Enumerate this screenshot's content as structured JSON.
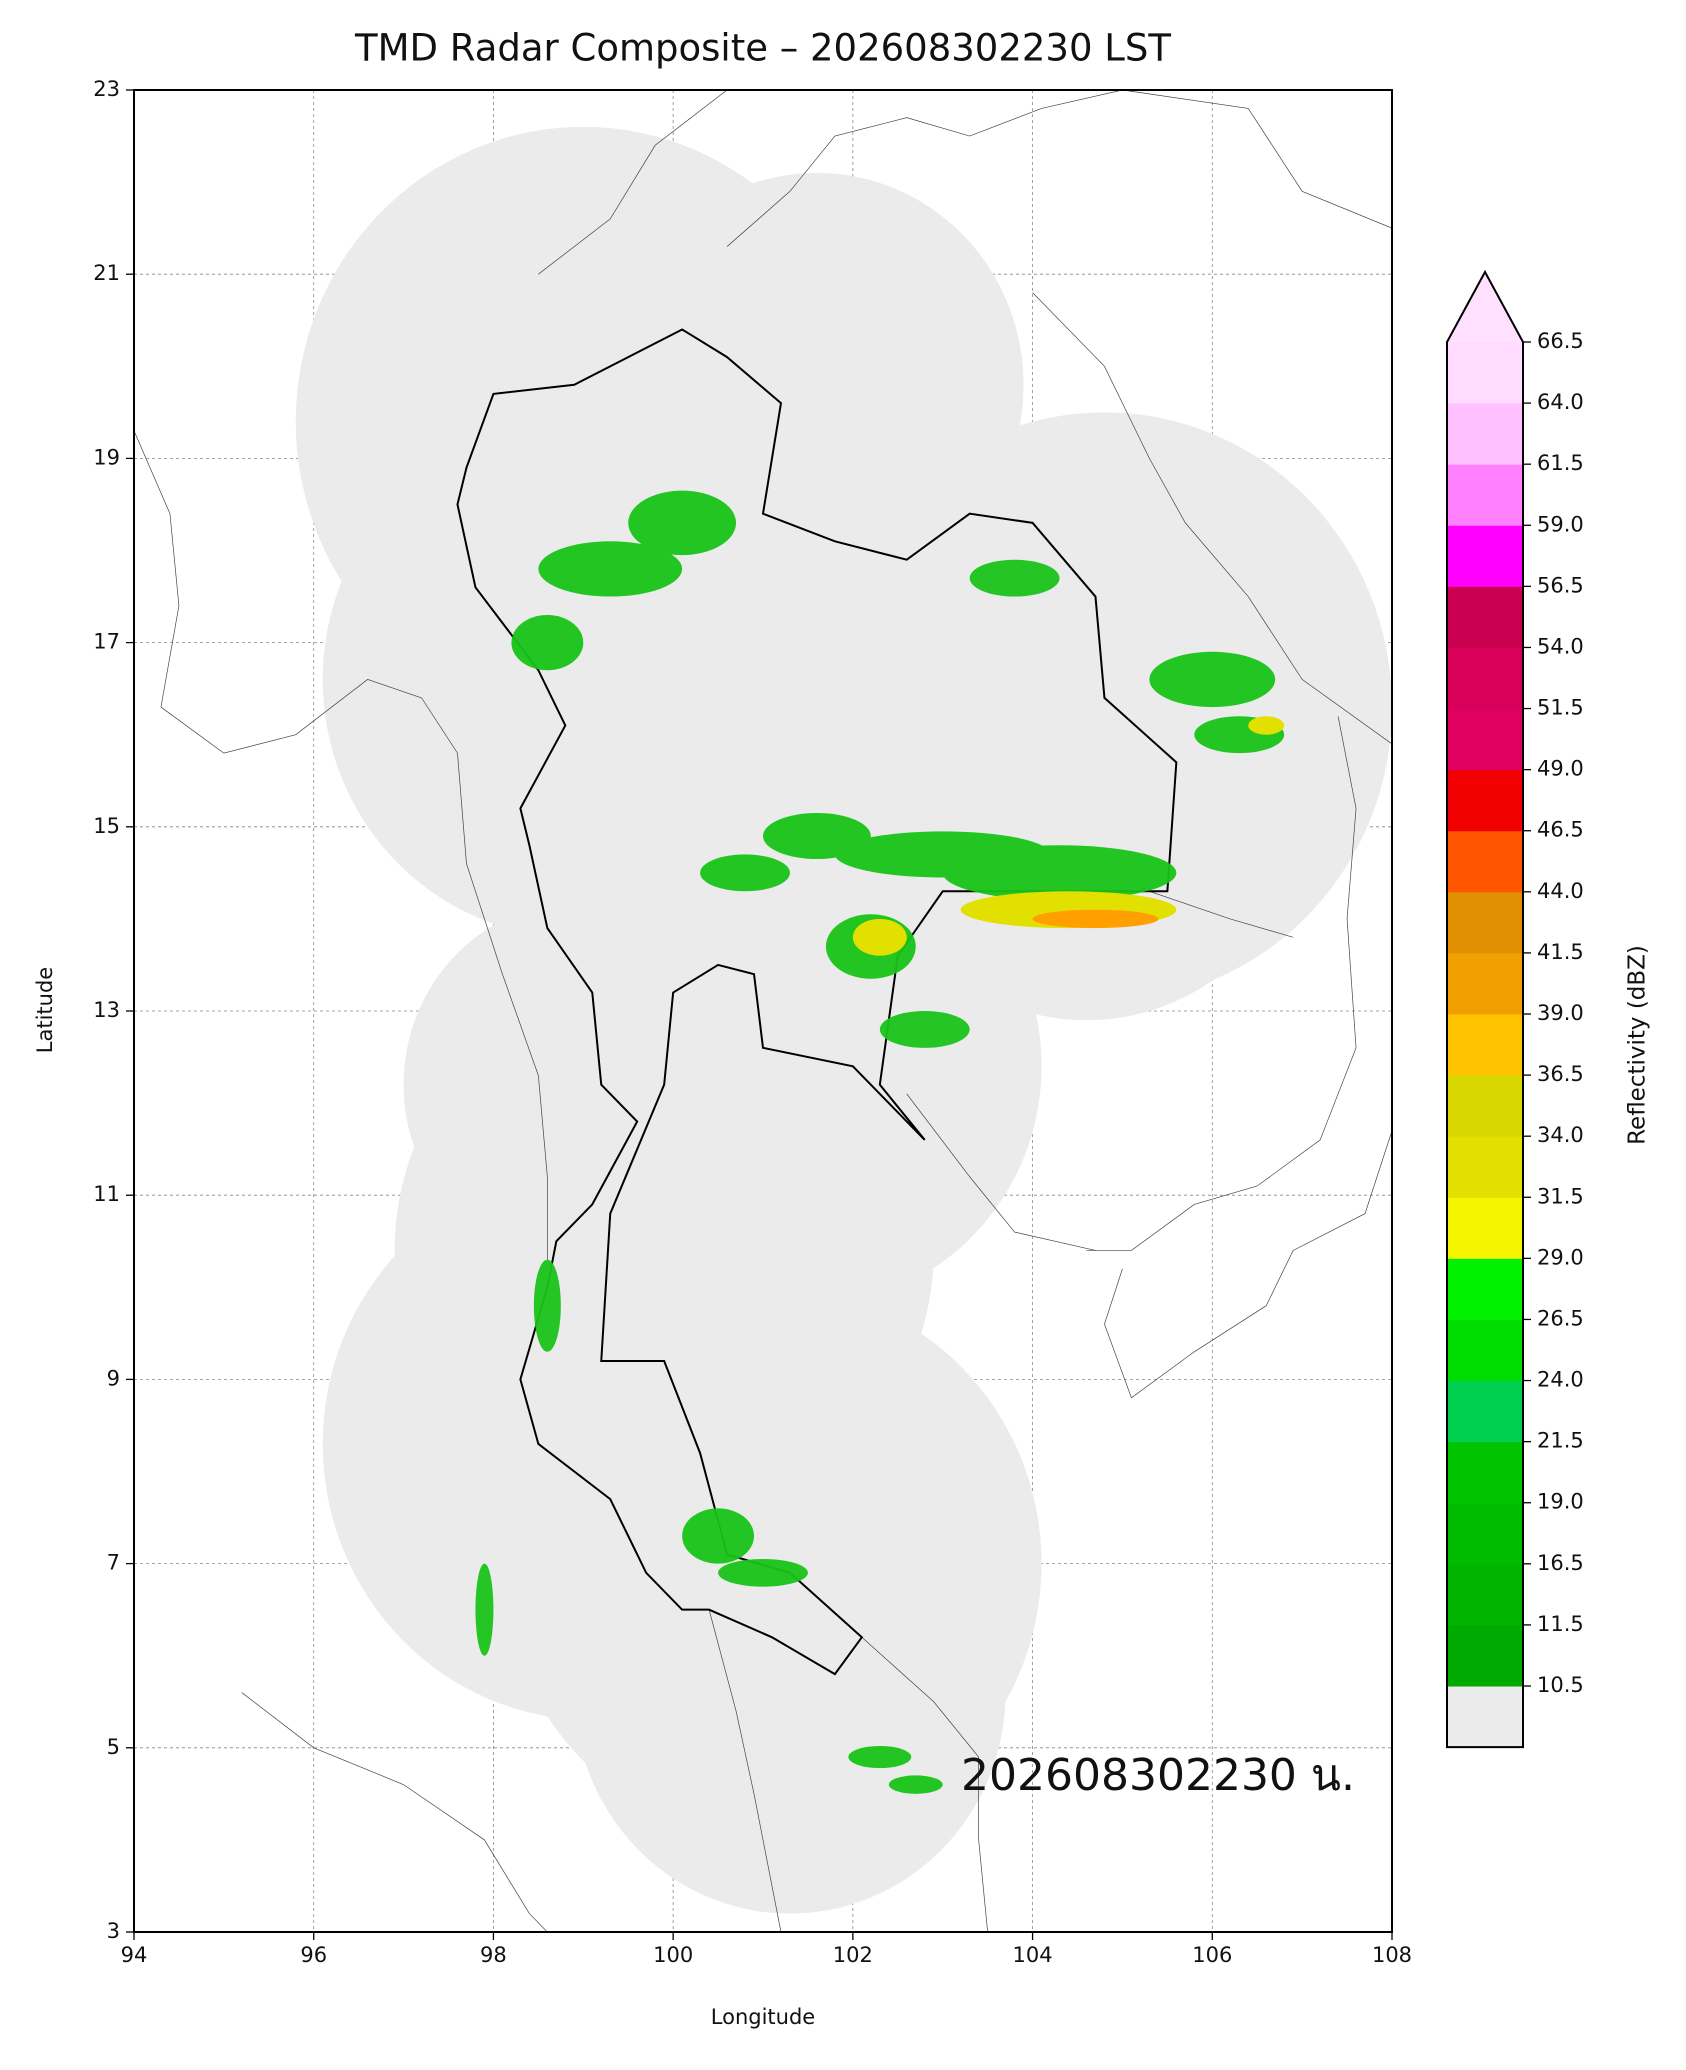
{
  "chart_data": {
    "type": "map",
    "title": "TMD Radar Composite – 202608302230 LST",
    "xlabel": "Longitude",
    "ylabel": "Latitude",
    "xlim": [
      94,
      108
    ],
    "ylim": [
      3,
      23
    ],
    "xticks": [
      94,
      96,
      98,
      100,
      102,
      104,
      106,
      108
    ],
    "yticks": [
      3,
      5,
      7,
      9,
      11,
      13,
      15,
      17,
      19,
      21,
      23
    ],
    "grid": true,
    "annotation": "202608302230 น.",
    "colorbar": {
      "label": "Reflectivity (dBZ)",
      "ticks": [
        10.5,
        11.5,
        16.5,
        {
          "value": 19,
          "label": "19.0"
        },
        21.5,
        {
          "value": 24,
          "label": "24.0"
        },
        26.5,
        {
          "value": 29,
          "label": "29.0"
        },
        31.5,
        {
          "value": 34,
          "label": "34.0"
        },
        36.5,
        {
          "value": 39,
          "label": "39.0"
        },
        41.5,
        {
          "value": 44,
          "label": "44.0"
        },
        46.5,
        {
          "value": 49,
          "label": "49.0"
        },
        51.5,
        {
          "value": 54,
          "label": "54.0"
        },
        56.5,
        {
          "value": 59,
          "label": "59.0"
        },
        61.5,
        {
          "value": 64,
          "label": "64.0"
        },
        66.5
      ],
      "colors": [
        "#00aa00",
        "#00b400",
        "#00bc00",
        "#00c400",
        "#00d050",
        "#00dc00",
        "#00f000",
        "#f5f500",
        "#e2e000",
        "#d8d800",
        "#ffc400",
        "#f0a000",
        "#e09000",
        "#ff5500",
        "#f00000",
        "#e00060",
        "#d80058",
        "#cc0050",
        "#ff00ff",
        "#ff80ff",
        "#ffc0ff",
        "#ffdcff"
      ],
      "under_color": "#ebebeb",
      "over_color": "#ffe0ff"
    }
  }
}
